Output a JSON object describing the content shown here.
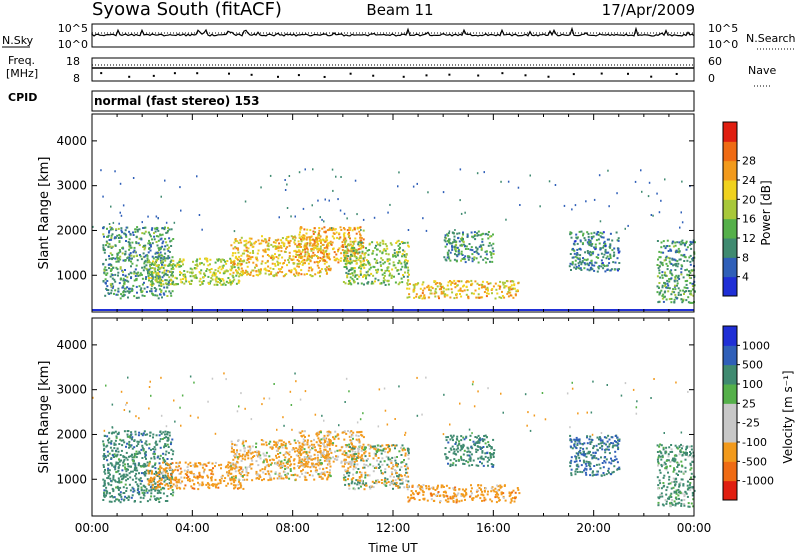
{
  "header": {
    "station": "Syowa South (fitACF)",
    "beam": "Beam 11",
    "date": "17/Apr/2009"
  },
  "status_panels": {
    "noise_left": "N.Sky",
    "noise_right": "N.Search",
    "noise_ticks_left": [
      "10^5",
      "10^0"
    ],
    "noise_ticks_right": [
      "10^5",
      "10^0"
    ],
    "freq_label_1": "Freq.",
    "freq_label_2": "[MHz]",
    "freq_ticks": [
      "18",
      "8"
    ],
    "nave_label": "Nave",
    "nave_ticks": [
      "60",
      "0"
    ],
    "cpid_label": "CPID",
    "cpid_text": "normal (fast stereo) 153"
  },
  "colors": {
    "power_scale": [
      "#1f2fd6",
      "#2f5fb8",
      "#3f8a70",
      "#55b04a",
      "#a8c83a",
      "#f0d21e",
      "#f29a1c",
      "#ef6b14",
      "#e01e10"
    ],
    "velocity_scale": [
      "#e01e10",
      "#ef6b14",
      "#f29a1c",
      "#c8c8c8",
      "#c8c8c8",
      "#55b04a",
      "#3f8a70",
      "#2f5fb8",
      "#1f2fd6"
    ],
    "ground_scatter": "#c0c0c0"
  },
  "chart_data": [
    {
      "type": "heatmap",
      "panel": "power",
      "ylabel": "Slant Range [km]",
      "ylim": [
        180,
        4600
      ],
      "yticks": [
        "1000",
        "2000",
        "3000",
        "4000"
      ],
      "xlim": [
        0,
        24
      ],
      "colorbar_label": "Power [dB]",
      "colorbar_ticks": [
        "4",
        "8",
        "12",
        "16",
        "20",
        "24",
        "28"
      ],
      "features": [
        {
          "t0": 0.4,
          "t1": 3.2,
          "r0": 500,
          "r1": 2100,
          "value": 10
        },
        {
          "t0": 2.2,
          "t1": 6.0,
          "r0": 800,
          "r1": 1400,
          "value": 16
        },
        {
          "t0": 5.5,
          "t1": 9.5,
          "r0": 1000,
          "r1": 1900,
          "value": 20
        },
        {
          "t0": 8.2,
          "t1": 10.8,
          "r0": 1300,
          "r1": 2100,
          "value": 22
        },
        {
          "t0": 10.0,
          "t1": 12.6,
          "r0": 800,
          "r1": 1800,
          "value": 14
        },
        {
          "t0": 12.5,
          "t1": 17.0,
          "r0": 500,
          "r1": 900,
          "value": 20
        },
        {
          "t0": 14.0,
          "t1": 16.0,
          "r0": 1300,
          "r1": 2000,
          "value": 10
        },
        {
          "t0": 19.0,
          "t1": 21.0,
          "r0": 1100,
          "r1": 2000,
          "value": 8
        },
        {
          "t0": 22.5,
          "t1": 24.0,
          "r0": 400,
          "r1": 1800,
          "value": 10
        }
      ]
    },
    {
      "type": "heatmap",
      "panel": "velocity",
      "ylabel": "Slant Range [km]",
      "ylim": [
        180,
        4600
      ],
      "yticks": [
        "1000",
        "2000",
        "3000",
        "4000"
      ],
      "xlim": [
        0,
        24
      ],
      "xlabel": "Time UT",
      "xticks": [
        "00:00",
        "04:00",
        "08:00",
        "12:00",
        "16:00",
        "20:00",
        "00:00"
      ],
      "colorbar_label": "Velocity [m s⁻¹]",
      "colorbar_ticks": [
        "1000",
        "500",
        "100",
        "25",
        "-25",
        "-100",
        "-500",
        "-1000"
      ],
      "features": [
        {
          "t0": 0.4,
          "t1": 3.2,
          "r0": 500,
          "r1": 2100,
          "value": 300
        },
        {
          "t0": 2.2,
          "t1": 6.0,
          "r0": 800,
          "r1": 1400,
          "value": -300
        },
        {
          "t0": 5.5,
          "t1": 9.5,
          "r0": 1000,
          "r1": 1900,
          "value": -150
        },
        {
          "t0": 8.2,
          "t1": 10.8,
          "r0": 1300,
          "r1": 2100,
          "value": -200
        },
        {
          "t0": 10.0,
          "t1": 12.6,
          "r0": 800,
          "r1": 1800,
          "value": 0
        },
        {
          "t0": 12.5,
          "t1": 17.0,
          "r0": 500,
          "r1": 900,
          "value": -300
        },
        {
          "t0": 14.0,
          "t1": 16.0,
          "r0": 1300,
          "r1": 2000,
          "value": 300
        },
        {
          "t0": 19.0,
          "t1": 21.0,
          "r0": 1100,
          "r1": 2000,
          "value": 500
        },
        {
          "t0": 22.5,
          "t1": 24.0,
          "r0": 400,
          "r1": 1800,
          "value": 200
        }
      ]
    }
  ]
}
